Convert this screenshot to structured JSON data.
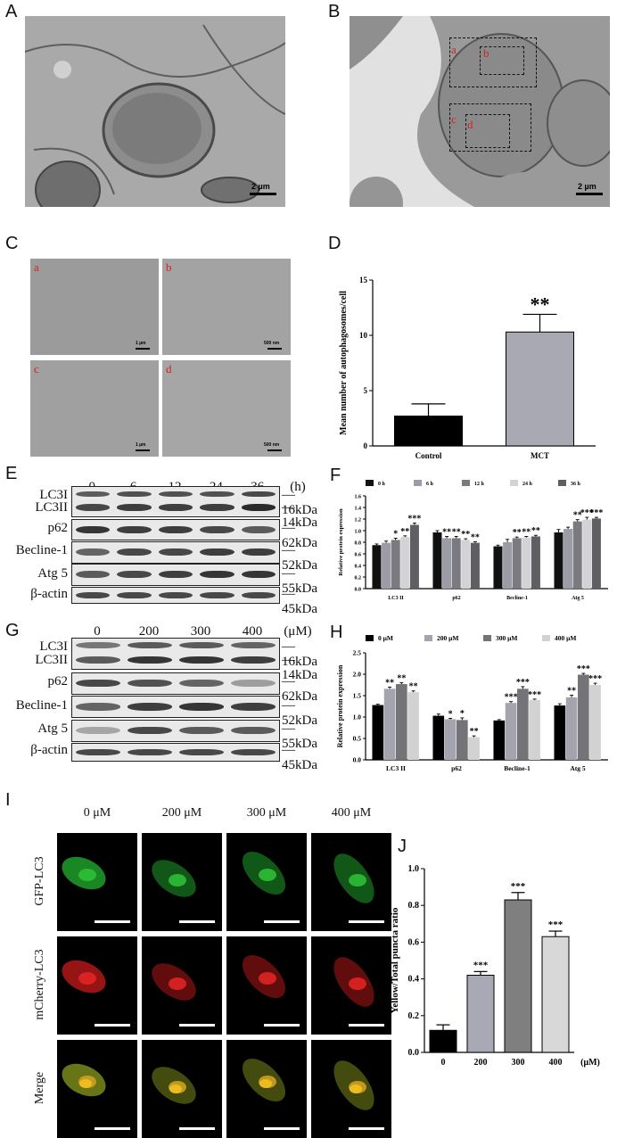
{
  "panels": {
    "A": {
      "label": "A",
      "scale": "2 µm"
    },
    "B": {
      "label": "B",
      "scale": "2 µm",
      "boxes": [
        "a",
        "b",
        "c",
        "d"
      ]
    },
    "C": {
      "label": "C",
      "tiles": [
        {
          "letter": "a",
          "scale": "1 µm"
        },
        {
          "letter": "b",
          "scale": "500 nm"
        },
        {
          "letter": "c",
          "scale": "1 µm"
        },
        {
          "letter": "d",
          "scale": "500 nm"
        }
      ]
    },
    "D": {
      "label": "D"
    },
    "E": {
      "label": "E",
      "lanes": [
        "0",
        "6",
        "12",
        "24",
        "36"
      ],
      "unit": "(h)",
      "rows": [
        "LC3I",
        "LC3II",
        "p62",
        "Becline-1",
        "Atg 5",
        "β-actin"
      ],
      "kda": [
        "16kDa",
        "14kDa",
        "62kDa",
        "52kDa",
        "55kDa",
        "45kDa"
      ]
    },
    "F": {
      "label": "F"
    },
    "G": {
      "label": "G",
      "lanes": [
        "0",
        "200",
        "300",
        "400"
      ],
      "unit": "(μM)",
      "rows": [
        "LC3I",
        "LC3II",
        "p62",
        "Becline-1",
        "Atg 5",
        "β-actin"
      ],
      "kda": [
        "16kDa",
        "14kDa",
        "62kDa",
        "52kDa",
        "55kDa",
        "45kDa"
      ]
    },
    "H": {
      "label": "H"
    },
    "I": {
      "label": "I",
      "cols": [
        "0 μM",
        "200 μM",
        "300 μM",
        "400 μM"
      ],
      "rows": [
        "GFP-LC3",
        "mCherry-LC3",
        "Merge"
      ]
    },
    "J": {
      "label": "J"
    }
  },
  "chart_data": [
    {
      "id": "D",
      "type": "bar",
      "ylabel": "Mean number of autophagosomes/cell",
      "categories": [
        "Control",
        "MCT"
      ],
      "values": [
        2.7,
        10.3
      ],
      "errors": [
        1.1,
        1.6
      ],
      "significance": [
        "",
        "**"
      ],
      "ylim": [
        0,
        15
      ],
      "yticks": [
        0,
        5,
        10,
        15
      ],
      "colors": [
        "#000000",
        "#a9a9b4"
      ]
    },
    {
      "id": "F",
      "type": "bar",
      "ylabel": "Relative protein expression",
      "categories": [
        "LC3 II",
        "p62",
        "Becline-1",
        "Atg 5"
      ],
      "series": [
        {
          "name": "0 h",
          "color": "#111111",
          "values": [
            0.75,
            0.97,
            0.73,
            0.97
          ],
          "errors": [
            0.02,
            0.03,
            0.02,
            0.05
          ],
          "sig": [
            "",
            "",
            "",
            ""
          ]
        },
        {
          "name": "6 h",
          "color": "#9c9ca6",
          "values": [
            0.79,
            0.87,
            0.8,
            1.03
          ],
          "errors": [
            0.03,
            0.03,
            0.05,
            0.03
          ],
          "sig": [
            "",
            "**",
            "",
            ""
          ]
        },
        {
          "name": "12 h",
          "color": "#7a7a80",
          "values": [
            0.84,
            0.87,
            0.87,
            1.16
          ],
          "errors": [
            0.03,
            0.03,
            0.02,
            0.03
          ],
          "sig": [
            "*",
            "**",
            "**",
            "**"
          ]
        },
        {
          "name": "24 h",
          "color": "#d3d3d6",
          "values": [
            0.89,
            0.84,
            0.88,
            1.19
          ],
          "errors": [
            0.02,
            0.02,
            0.02,
            0.04
          ],
          "sig": [
            "**",
            "**",
            "**",
            "***"
          ]
        },
        {
          "name": "36 h",
          "color": "#5f5f63",
          "values": [
            1.1,
            0.79,
            0.9,
            1.21
          ],
          "errors": [
            0.03,
            0.02,
            0.02,
            0.02
          ],
          "sig": [
            "***",
            "**",
            "**",
            "***"
          ]
        }
      ],
      "ylim": [
        0,
        1.6
      ],
      "yticks": [
        0.0,
        0.2,
        0.4,
        0.6,
        0.8,
        1.0,
        1.2,
        1.4,
        1.6
      ],
      "legend": "top"
    },
    {
      "id": "H",
      "type": "bar",
      "ylabel": "Relative protein expression",
      "categories": [
        "LC3 II",
        "p62",
        "Becline-1",
        "Atg 5"
      ],
      "series": [
        {
          "name": "0 μM",
          "color": "#000000",
          "values": [
            1.28,
            1.03,
            0.92,
            1.27
          ],
          "errors": [
            0.02,
            0.04,
            0.02,
            0.04
          ],
          "sig": [
            "",
            "",
            "",
            ""
          ]
        },
        {
          "name": "200 μM",
          "color": "#a4a4ae",
          "values": [
            1.66,
            0.95,
            1.33,
            1.46
          ],
          "errors": [
            0.04,
            0.02,
            0.03,
            0.05
          ],
          "sig": [
            "**",
            "*",
            "***",
            "**"
          ]
        },
        {
          "name": "300 μM",
          "color": "#747478",
          "values": [
            1.77,
            0.93,
            1.66,
            1.99
          ],
          "errors": [
            0.03,
            0.05,
            0.05,
            0.03
          ],
          "sig": [
            "**",
            "*",
            "***",
            "***"
          ]
        },
        {
          "name": "400 μM",
          "color": "#d2d2d2",
          "values": [
            1.58,
            0.53,
            1.4,
            1.75
          ],
          "errors": [
            0.03,
            0.03,
            0.02,
            0.04
          ],
          "sig": [
            "**",
            "**",
            "***",
            "***"
          ]
        }
      ],
      "ylim": [
        0,
        2.5
      ],
      "yticks": [
        0.0,
        0.5,
        1.0,
        1.5,
        2.0,
        2.5
      ],
      "legend": "top"
    },
    {
      "id": "J",
      "type": "bar",
      "ylabel": "Yellow/Total puncta ratio",
      "xunit": "(μM)",
      "categories": [
        "0",
        "200",
        "300",
        "400"
      ],
      "values": [
        0.12,
        0.42,
        0.83,
        0.63
      ],
      "errors": [
        0.03,
        0.02,
        0.04,
        0.03
      ],
      "significance": [
        "",
        "***",
        "***",
        "***"
      ],
      "colors": [
        "#000000",
        "#a9a9b5",
        "#7f7f7f",
        "#d8d8d8"
      ],
      "ylim": [
        0,
        1.0
      ],
      "yticks": [
        0.0,
        0.2,
        0.4,
        0.6,
        0.8,
        1.0
      ]
    }
  ]
}
